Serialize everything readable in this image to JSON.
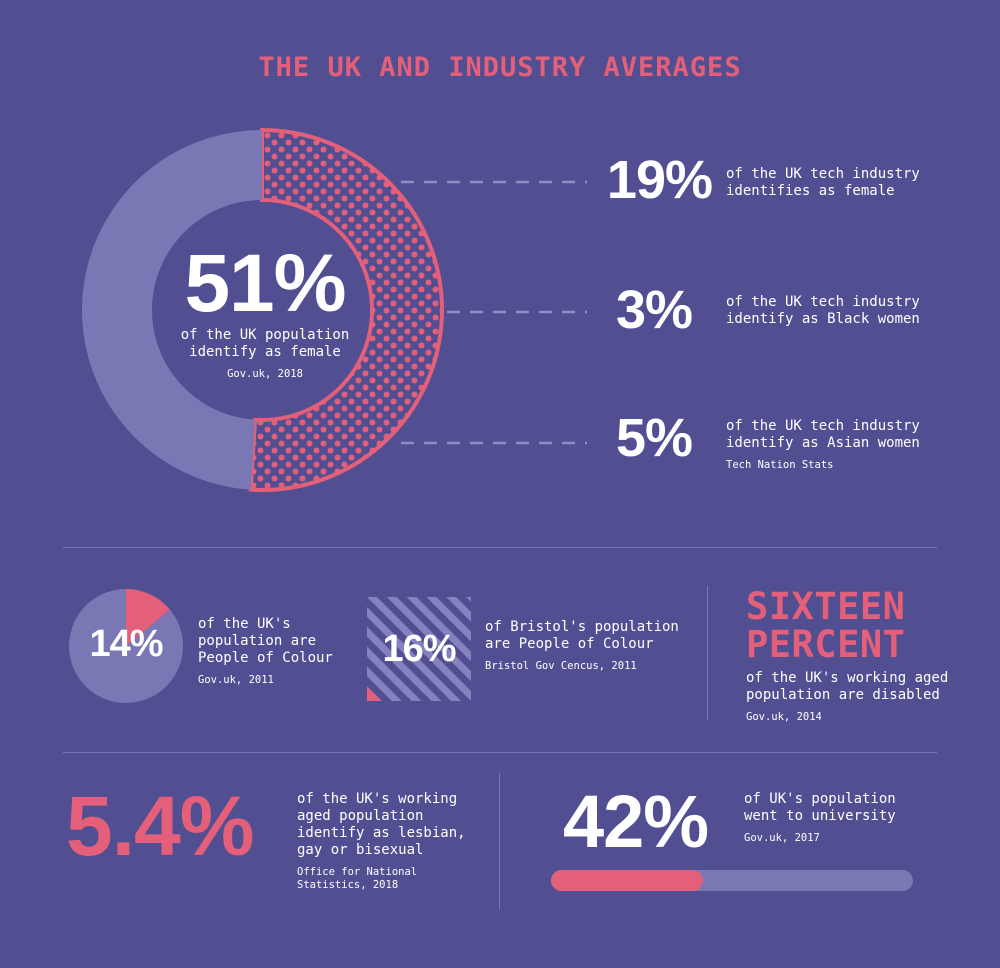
{
  "title": "THE UK AND INDUSTRY AVERAGES",
  "colors": {
    "background": "#514f91",
    "accent_pink": "#e4607a",
    "muted_lavender": "#7a78b4",
    "white": "#ffffff"
  },
  "chart_data": [
    {
      "type": "pie",
      "title": "",
      "variant": "donut",
      "slices": [
        {
          "label": "female",
          "value": 51,
          "color": "#e4607a",
          "pattern": "dots"
        },
        {
          "label": "",
          "value": 49,
          "color": "#7a78b4"
        }
      ],
      "center_value": "51%",
      "center_text": "of the UK population identify as female",
      "source": "Gov.uk, 2018"
    },
    {
      "type": "table",
      "title": "",
      "rows": [
        {
          "value": "19%",
          "text": "of the UK tech industry identifies as female",
          "source": ""
        },
        {
          "value": "3%",
          "text": "of the UK tech industry identify as Black women",
          "source": ""
        },
        {
          "value": "5%",
          "text": "of the UK tech industry identify as Asian women",
          "source": "Tech Nation Stats"
        }
      ]
    },
    {
      "type": "pie",
      "title": "",
      "slices": [
        {
          "label": "People of Colour",
          "value": 14,
          "color": "#e4607a"
        },
        {
          "label": "",
          "value": 86,
          "color": "#7a78b4"
        }
      ],
      "center_value": "14%",
      "text": "of the UK's population are People of Colour",
      "source": "Gov.uk, 2011"
    },
    {
      "type": "area",
      "title": "",
      "value": 16,
      "center_value": "16%",
      "text": "of Bristol's population are People of Colour",
      "source": "Bristol Gov Cencus, 2011"
    },
    {
      "type": "bar",
      "title": "",
      "value": 42,
      "max": 100,
      "center_value": "42%",
      "text": "of UK's population went to university",
      "source": "Gov.uk, 2017"
    }
  ],
  "stats": {
    "row1": {
      "line_a": {
        "value": "19%",
        "text_1": "of the UK tech industry",
        "text_2": "identifies as female"
      },
      "line_b": {
        "value": "3%",
        "text_1": "of the UK tech industry",
        "text_2": "identify as Black women"
      },
      "line_c": {
        "value": "5%",
        "text_1": "of the UK tech industry",
        "text_2": "identify as Asian women",
        "source": "Tech Nation Stats"
      }
    },
    "donut": {
      "value": "51%",
      "text_1": "of the UK population",
      "text_2": "identify as female",
      "source": "Gov.uk, 2018"
    },
    "poc_uk": {
      "value": "14%",
      "text_1": "of the UK's",
      "text_2": "population are",
      "text_3": "People of Colour",
      "source": "Gov.uk, 2011"
    },
    "poc_bristol": {
      "value": "16%",
      "text_1": "of Bristol's population",
      "text_2": "are People of Colour",
      "source": "Bristol Gov Cencus, 2011"
    },
    "disabled": {
      "headline_1": "SIXTEEN",
      "headline_2": "PERCENT",
      "text_1": "of the UK's working aged",
      "text_2": "population are disabled",
      "source": "Gov.uk, 2014"
    },
    "lgb": {
      "value": "5.4%",
      "text_1": "of the UK's working",
      "text_2": "aged population",
      "text_3": "identify as lesbian,",
      "text_4": "gay or bisexual",
      "source_1": "Office for National",
      "source_2": "Statistics, 2018"
    },
    "university": {
      "value": "42%",
      "text_1": "of UK's population",
      "text_2": "went to university",
      "source": "Gov.uk, 2017"
    }
  }
}
